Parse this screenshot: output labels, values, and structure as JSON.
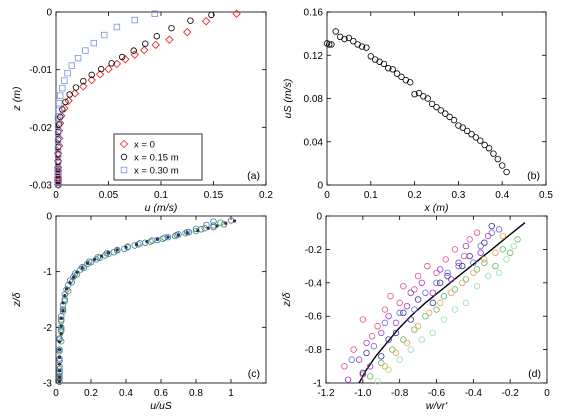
{
  "chart_data": [
    {
      "id": "a",
      "type": "scatter",
      "panel_label": "(a)",
      "xlabel": "u (m/s)",
      "ylabel": "z (m)",
      "xlim": [
        0,
        0.2
      ],
      "ylim": [
        -0.03,
        0
      ],
      "xticks": [
        0,
        0.05,
        0.1,
        0.15,
        0.2
      ],
      "xtick_labels": [
        "0",
        "0.05",
        "0.1",
        "0.15",
        "0.2"
      ],
      "yticks": [
        -0.03,
        -0.02,
        -0.01,
        0
      ],
      "ytick_labels": [
        "-0.03",
        "-0.02",
        "-0.01",
        "0"
      ],
      "legend_position": "bottom-center",
      "series": [
        {
          "name": "x = 0",
          "marker": "diamond",
          "color": "#e8161b",
          "x": [
            0.172,
            0.143,
            0.125,
            0.108,
            0.095,
            0.084,
            0.075,
            0.066,
            0.058,
            0.05,
            0.042,
            0.034,
            0.026,
            0.018,
            0.012,
            0.008,
            0.005,
            0.004,
            0.003,
            0.003,
            0.003,
            0.002,
            0.002,
            0.002,
            0.002,
            0.002,
            0.002,
            0.002,
            0.002,
            0.002
          ],
          "y": [
            -0.0003,
            -0.0016,
            -0.0035,
            -0.0048,
            -0.0057,
            -0.0066,
            -0.0074,
            -0.0082,
            -0.009,
            -0.0099,
            -0.0108,
            -0.0118,
            -0.0129,
            -0.0141,
            -0.0154,
            -0.0167,
            -0.018,
            -0.0193,
            -0.0206,
            -0.0219,
            -0.0232,
            -0.0245,
            -0.0258,
            -0.027,
            -0.0281,
            -0.0291,
            -0.0299,
            -0.0295,
            -0.0287,
            -0.0275
          ]
        },
        {
          "name": "x = 0.15 m",
          "marker": "circle",
          "color": "#000000",
          "x": [
            0.148,
            0.128,
            0.11,
            0.096,
            0.085,
            0.074,
            0.063,
            0.053,
            0.043,
            0.034,
            0.026,
            0.019,
            0.013,
            0.009,
            0.006,
            0.004,
            0.003,
            0.002,
            0.002,
            0.002,
            0.002,
            0.002,
            0.002,
            0.002,
            0.002,
            0.002,
            0.002,
            0.002
          ],
          "y": [
            -0.0005,
            -0.0015,
            -0.0028,
            -0.0042,
            -0.0055,
            -0.0067,
            -0.0078,
            -0.0089,
            -0.0099,
            -0.0109,
            -0.012,
            -0.0131,
            -0.0143,
            -0.0156,
            -0.0169,
            -0.0182,
            -0.0195,
            -0.0208,
            -0.0221,
            -0.0234,
            -0.0247,
            -0.026,
            -0.0272,
            -0.0283,
            -0.0293,
            -0.03,
            -0.0289,
            -0.0277
          ]
        },
        {
          "name": "x = 0.30 m",
          "marker": "square",
          "color": "#7b8fe8",
          "x": [
            0.094,
            0.075,
            0.058,
            0.046,
            0.036,
            0.028,
            0.021,
            0.015,
            0.011,
            0.008,
            0.006,
            0.004,
            0.003,
            0.003,
            0.002,
            0.002,
            0.002,
            0.002,
            0.002,
            0.002,
            0.002,
            0.002,
            0.002,
            0.002,
            0.002,
            0.002
          ],
          "y": [
            -0.0003,
            -0.0014,
            -0.0026,
            -0.004,
            -0.0054,
            -0.0067,
            -0.008,
            -0.0093,
            -0.0106,
            -0.0119,
            -0.0132,
            -0.0145,
            -0.0158,
            -0.0171,
            -0.0184,
            -0.0197,
            -0.021,
            -0.0223,
            -0.0236,
            -0.0249,
            -0.0262,
            -0.0274,
            -0.0285,
            -0.0294,
            -0.0299,
            -0.0279
          ]
        }
      ]
    },
    {
      "id": "b",
      "type": "scatter",
      "panel_label": "(b)",
      "xlabel": "x (m)",
      "ylabel": "uS (m/s)",
      "xlim": [
        0,
        0.5
      ],
      "ylim": [
        0,
        0.16
      ],
      "xticks": [
        0,
        0.1,
        0.2,
        0.3,
        0.4,
        0.5
      ],
      "xtick_labels": [
        "0",
        "0.1",
        "0.2",
        "0.3",
        "0.4",
        "0.5"
      ],
      "yticks": [
        0,
        0.04,
        0.08,
        0.12,
        0.16
      ],
      "ytick_labels": [
        "0",
        "0.04",
        "0.08",
        "0.12",
        "0.16"
      ],
      "series": [
        {
          "marker": "circle",
          "color": "#000000",
          "x": [
            0,
            0.005,
            0.01,
            0.02,
            0.03,
            0.04,
            0.05,
            0.06,
            0.07,
            0.08,
            0.09,
            0.1,
            0.11,
            0.12,
            0.13,
            0.14,
            0.15,
            0.16,
            0.17,
            0.18,
            0.19,
            0.2,
            0.21,
            0.22,
            0.23,
            0.24,
            0.25,
            0.26,
            0.27,
            0.28,
            0.29,
            0.3,
            0.31,
            0.32,
            0.33,
            0.34,
            0.35,
            0.36,
            0.37,
            0.38,
            0.39,
            0.4,
            0.41
          ],
          "y": [
            0.131,
            0.13,
            0.13,
            0.142,
            0.137,
            0.135,
            0.136,
            0.133,
            0.13,
            0.128,
            0.127,
            0.119,
            0.116,
            0.114,
            0.112,
            0.108,
            0.107,
            0.103,
            0.1,
            0.097,
            0.095,
            0.084,
            0.085,
            0.082,
            0.08,
            0.075,
            0.072,
            0.069,
            0.066,
            0.063,
            0.06,
            0.055,
            0.053,
            0.05,
            0.047,
            0.044,
            0.041,
            0.037,
            0.034,
            0.029,
            0.024,
            0.018,
            0.012
          ]
        }
      ]
    },
    {
      "id": "c",
      "type": "scatter",
      "panel_label": "(c)",
      "xlabel": "u/uS",
      "ylabel": "z/δ",
      "xlim": [
        0,
        1.2
      ],
      "ylim": [
        -3,
        0
      ],
      "xticks": [
        0,
        0.2,
        0.4,
        0.6,
        0.8,
        1
      ],
      "xtick_labels": [
        "0",
        "0.2",
        "0.4",
        "0.6",
        "0.8",
        "1"
      ],
      "yticks": [
        -3,
        -2,
        -1,
        0
      ],
      "ytick_labels": [
        "-3",
        "-2",
        "-1",
        "0"
      ],
      "series": [
        {
          "marker": "circle",
          "color": "#6b5fa8",
          "x": [
            1.0,
            0.96,
            0.9,
            0.83,
            0.76,
            0.69,
            0.62,
            0.55,
            0.48,
            0.41,
            0.35,
            0.29,
            0.24,
            0.19,
            0.15,
            0.11,
            0.08,
            0.06,
            0.05,
            0.04,
            0.03,
            0.03,
            0.02,
            0.02,
            0.02,
            0.02,
            0.02,
            0.02,
            0.02,
            0.02
          ],
          "y": [
            -0.08,
            -0.15,
            -0.2,
            -0.24,
            -0.29,
            -0.34,
            -0.39,
            -0.44,
            -0.49,
            -0.55,
            -0.61,
            -0.67,
            -0.74,
            -0.82,
            -0.92,
            -1.03,
            -1.16,
            -1.32,
            -1.5,
            -1.68,
            -1.86,
            -2.04,
            -2.22,
            -2.4,
            -2.56,
            -2.7,
            -2.82,
            -2.92,
            -2.98,
            -2.88
          ]
        },
        {
          "marker": "circle",
          "color": "#3a9c4e",
          "x": [
            0.94,
            0.9,
            0.85,
            0.8,
            0.74,
            0.68,
            0.61,
            0.54,
            0.47,
            0.41,
            0.35,
            0.3,
            0.25,
            0.2,
            0.16,
            0.12,
            0.09,
            0.07,
            0.05,
            0.04,
            0.03,
            0.03,
            0.03,
            0.02,
            0.02,
            0.02,
            0.02
          ],
          "y": [
            -0.12,
            -0.17,
            -0.22,
            -0.27,
            -0.31,
            -0.36,
            -0.41,
            -0.46,
            -0.51,
            -0.56,
            -0.62,
            -0.68,
            -0.75,
            -0.83,
            -0.93,
            -1.05,
            -1.19,
            -1.35,
            -1.53,
            -1.71,
            -1.89,
            -2.07,
            -2.25,
            -2.43,
            -2.6,
            -2.75,
            -2.9
          ]
        },
        {
          "marker": "circle",
          "color": "#2a7fc8",
          "x": [
            0.9,
            0.86,
            0.8,
            0.75,
            0.7,
            0.64,
            0.58,
            0.51,
            0.45,
            0.39,
            0.33,
            0.28,
            0.23,
            0.18,
            0.14,
            0.1,
            0.07,
            0.05,
            0.04,
            0.03,
            0.03,
            0.02,
            0.02,
            0.02,
            0.02
          ],
          "y": [
            -0.1,
            -0.16,
            -0.23,
            -0.29,
            -0.33,
            -0.38,
            -0.43,
            -0.48,
            -0.53,
            -0.59,
            -0.65,
            -0.71,
            -0.78,
            -0.86,
            -0.96,
            -1.09,
            -1.24,
            -1.41,
            -1.6,
            -1.8,
            -2.0,
            -2.2,
            -2.4,
            -2.6,
            -2.8
          ]
        },
        {
          "marker": "dot",
          "color": "#333333",
          "x": [
            1.02,
            0.97,
            0.92,
            0.87,
            0.81,
            0.75,
            0.7,
            0.64,
            0.58,
            0.52,
            0.46,
            0.4,
            0.35,
            0.3,
            0.26,
            0.22,
            0.18,
            0.15,
            0.12,
            0.1,
            0.08,
            0.06,
            0.05,
            0.04,
            0.04,
            0.03,
            0.03,
            0.03,
            0.02,
            0.02,
            0.02,
            0.02,
            0.02,
            0.02,
            0.02
          ],
          "y": [
            -0.09,
            -0.13,
            -0.18,
            -0.22,
            -0.26,
            -0.3,
            -0.34,
            -0.38,
            -0.42,
            -0.46,
            -0.51,
            -0.56,
            -0.61,
            -0.66,
            -0.72,
            -0.78,
            -0.85,
            -0.93,
            -1.01,
            -1.1,
            -1.2,
            -1.31,
            -1.43,
            -1.56,
            -1.7,
            -1.84,
            -1.98,
            -2.12,
            -2.26,
            -2.4,
            -2.54,
            -2.66,
            -2.78,
            -2.9,
            -2.97
          ]
        }
      ]
    },
    {
      "id": "d",
      "type": "scatter",
      "panel_label": "(d)",
      "xlabel": "w/vr'",
      "ylabel": "z/δ",
      "xlim": [
        -1.2,
        0
      ],
      "ylim": [
        -1,
        0
      ],
      "xticks": [
        -1.2,
        -1.0,
        -0.8,
        -0.6,
        -0.4,
        -0.2,
        0
      ],
      "xtick_labels": [
        "-1.2",
        "-1.0",
        "-0.8",
        "-0.6",
        "-0.4",
        "-0.2",
        "0"
      ],
      "yticks": [
        -1,
        -0.8,
        -0.6,
        -0.4,
        -0.2,
        0
      ],
      "ytick_labels": [
        "-1",
        "-0.8",
        "-0.6",
        "-0.4",
        "-0.2",
        "0"
      ],
      "curve": {
        "color": "#000000",
        "x": [
          -1.02,
          -0.98,
          -0.93,
          -0.87,
          -0.81,
          -0.74,
          -0.66,
          -0.57,
          -0.48,
          -0.39,
          -0.3,
          -0.21,
          -0.12
        ],
        "y": [
          -1.0,
          -0.92,
          -0.84,
          -0.76,
          -0.68,
          -0.6,
          -0.52,
          -0.44,
          -0.36,
          -0.28,
          -0.2,
          -0.12,
          -0.04
        ]
      },
      "series": [
        {
          "marker": "circle",
          "color": "#e0528a",
          "x": [
            -1.1,
            -1.05,
            -1.0,
            -0.95,
            -1.0,
            -0.92,
            -0.88,
            -0.85,
            -0.8,
            -0.78,
            -0.72,
            -0.7,
            -0.65,
            -0.6,
            -0.55,
            -0.5,
            -0.45,
            -0.42,
            -0.38
          ],
          "y": [
            -0.9,
            -0.8,
            -0.95,
            -0.72,
            -0.62,
            -0.66,
            -0.56,
            -0.48,
            -0.52,
            -0.42,
            -0.44,
            -0.36,
            -0.3,
            -0.34,
            -0.26,
            -0.2,
            -0.24,
            -0.14,
            -0.1
          ]
        },
        {
          "marker": "circle",
          "color": "#a33ad1",
          "x": [
            -1.08,
            -1.02,
            -0.98,
            -0.96,
            -0.9,
            -0.86,
            -0.82,
            -0.76,
            -0.74,
            -0.68,
            -0.62,
            -0.58,
            -0.52,
            -0.48,
            -0.44,
            -0.36,
            -0.32
          ],
          "y": [
            -0.98,
            -0.86,
            -0.76,
            -0.9,
            -0.7,
            -0.6,
            -0.64,
            -0.54,
            -0.46,
            -0.4,
            -0.46,
            -0.32,
            -0.38,
            -0.28,
            -0.18,
            -0.22,
            -0.12
          ]
        },
        {
          "marker": "circle",
          "color": "#5dbb63",
          "x": [
            -0.96,
            -0.9,
            -0.84,
            -0.78,
            -0.72,
            -0.66,
            -0.6,
            -0.56,
            -0.5,
            -0.44,
            -0.38,
            -0.34,
            -0.28,
            -0.24,
            -0.2,
            -0.16
          ],
          "y": [
            -0.96,
            -0.88,
            -0.8,
            -0.74,
            -0.68,
            -0.6,
            -0.56,
            -0.48,
            -0.44,
            -0.38,
            -0.32,
            -0.28,
            -0.3,
            -0.2,
            -0.22,
            -0.14
          ]
        },
        {
          "marker": "circle",
          "color": "#98e0a8",
          "x": [
            -0.92,
            -0.86,
            -0.8,
            -0.74,
            -0.68,
            -0.62,
            -0.56,
            -0.5,
            -0.44,
            -0.38,
            -0.32,
            -0.26,
            -0.22,
            -0.18
          ],
          "y": [
            -0.99,
            -0.92,
            -0.86,
            -0.8,
            -0.74,
            -0.7,
            -0.62,
            -0.56,
            -0.52,
            -0.42,
            -0.36,
            -0.34,
            -0.26,
            -0.18
          ]
        },
        {
          "marker": "circle",
          "color": "#3a2f9c",
          "x": [
            -1.0,
            -0.98,
            -0.9,
            -0.86,
            -0.82,
            -0.78,
            -0.74,
            -0.7,
            -0.62,
            -0.58,
            -0.54,
            -0.46,
            -0.42,
            -0.34,
            -0.3
          ],
          "y": [
            -0.94,
            -0.82,
            -0.84,
            -0.74,
            -0.7,
            -0.58,
            -0.62,
            -0.5,
            -0.52,
            -0.4,
            -0.36,
            -0.3,
            -0.24,
            -0.16,
            -0.06
          ]
        },
        {
          "marker": "circle",
          "color": "#f0a050",
          "x": [
            -0.88,
            -0.82,
            -0.76,
            -0.7,
            -0.64,
            -0.58,
            -0.52,
            -0.46,
            -0.4,
            -0.34,
            -0.28,
            -0.24
          ],
          "y": [
            -0.9,
            -0.82,
            -0.76,
            -0.66,
            -0.58,
            -0.52,
            -0.46,
            -0.4,
            -0.34,
            -0.26,
            -0.22,
            -0.12
          ]
        },
        {
          "marker": "circle",
          "color": "#6a6ad8",
          "x": [
            -1.06,
            -0.94,
            -0.88,
            -0.8,
            -0.72,
            -0.66,
            -0.6,
            -0.54,
            -0.48,
            -0.4,
            -0.36,
            -0.3,
            -0.26
          ],
          "y": [
            -0.86,
            -0.78,
            -0.64,
            -0.58,
            -0.56,
            -0.46,
            -0.4,
            -0.34,
            -0.3,
            -0.28,
            -0.18,
            -0.1,
            -0.08
          ]
        }
      ]
    }
  ]
}
